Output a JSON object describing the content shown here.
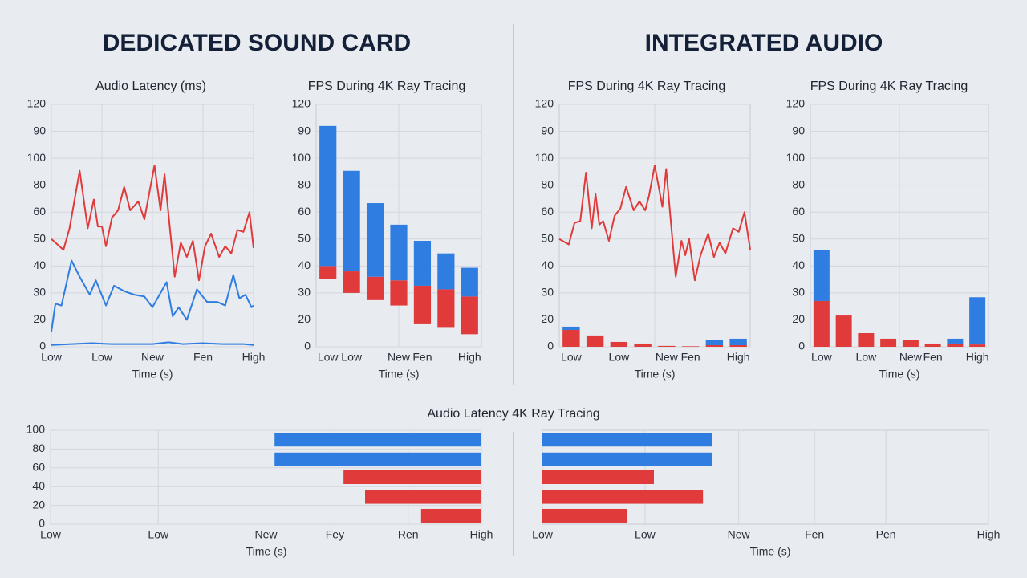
{
  "headings": [
    "DEDICATED SOUND CARD",
    "INTEGRATED AUDIO"
  ],
  "chart_data": [
    {
      "type": "line",
      "title": "Audio Latency (ms)",
      "x_label": "Time (s)",
      "xlim": [
        0,
        100
      ],
      "xticks": [
        {
          "value": 0,
          "label": "Low"
        },
        {
          "value": 25,
          "label": "Low"
        },
        {
          "value": 50,
          "label": "New"
        },
        {
          "value": 75,
          "label": "Fen"
        },
        {
          "value": 100,
          "label": "High"
        }
      ],
      "ylim": [
        0,
        135
      ],
      "yticks": [
        0,
        {
          "value": 15,
          "label": "20"
        },
        30,
        {
          "value": 45,
          "label": "40"
        },
        {
          "value": 60,
          "label": "50"
        },
        {
          "value": 75,
          "label": "60"
        },
        {
          "value": 90,
          "label": "80"
        },
        {
          "value": 105,
          "label": "100"
        },
        {
          "value": 120,
          "label": "90"
        },
        {
          "value": 135,
          "label": "120"
        }
      ],
      "series": [
        {
          "color": "#e03a3a",
          "x": [
            0,
            6,
            9,
            14,
            18,
            21,
            23,
            25,
            27,
            30,
            33,
            36,
            39,
            43,
            46,
            51,
            54,
            56,
            61,
            64,
            67,
            70,
            73,
            76,
            79,
            83,
            86,
            89,
            92,
            95,
            98,
            100
          ],
          "values": [
            60,
            54,
            66,
            98,
            66,
            82,
            67,
            67,
            56,
            72,
            76,
            89,
            76,
            81,
            71,
            101,
            76,
            96,
            39,
            58,
            50,
            59,
            37,
            56,
            63,
            50,
            56,
            52,
            65,
            64,
            75,
            55
          ]
        },
        {
          "color": "#2f7de1",
          "x": [
            0,
            2,
            5,
            10,
            14,
            19,
            22,
            27,
            31,
            36,
            41,
            46,
            50,
            57,
            60,
            63,
            67,
            72,
            77,
            82,
            86,
            90,
            93,
            96,
            99,
            100
          ],
          "values": [
            8.5,
            24,
            23,
            48,
            39,
            29,
            37,
            23,
            34,
            31,
            29,
            28,
            22,
            36,
            17,
            22,
            15,
            32,
            25,
            25,
            23,
            40,
            27,
            29,
            22,
            23
          ]
        },
        {
          "color": "#2f7de1",
          "x": [
            0,
            10,
            20,
            30,
            40,
            50,
            58,
            65,
            75,
            85,
            95,
            100
          ],
          "values": [
            1,
            1.5,
            2,
            1.5,
            1.5,
            1.5,
            2.5,
            1.5,
            2,
            1.5,
            1.5,
            1
          ]
        }
      ]
    },
    {
      "type": "bar",
      "title": "FPS During 4K Ray Tracing",
      "x_label": "Time (s)",
      "categories": [
        "Low",
        "Low",
        null,
        "New",
        "Fen",
        null,
        "High"
      ],
      "ylim": [
        0,
        135
      ],
      "yticks": [
        0,
        {
          "value": 15,
          "label": "20"
        },
        30,
        {
          "value": 45,
          "label": "40"
        },
        {
          "value": 60,
          "label": "50"
        },
        {
          "value": 75,
          "label": "60"
        },
        {
          "value": 90,
          "label": "80"
        },
        {
          "value": 105,
          "label": "100"
        },
        {
          "value": 120,
          "label": "90"
        },
        {
          "value": 135,
          "label": "120"
        }
      ],
      "base": [
        38,
        30,
        26,
        23,
        13,
        11,
        7
      ],
      "series": [
        {
          "color": "#e03a3a",
          "values": [
            7,
            12,
            13,
            14,
            21,
            21,
            21
          ]
        },
        {
          "color": "#2f7de1",
          "values": [
            78,
            56,
            41,
            31,
            25,
            20,
            16
          ]
        }
      ]
    },
    {
      "type": "combo",
      "title": "FPS During 4K Ray Tracing",
      "x_label": "Time (s)",
      "categories": [
        "Low",
        null,
        "Low",
        null,
        "New",
        "Fen",
        null,
        "High"
      ],
      "xlim": [
        0,
        100
      ],
      "ylim": [
        0,
        135
      ],
      "yticks": [
        0,
        {
          "value": 15,
          "label": "20"
        },
        30,
        {
          "value": 45,
          "label": "40"
        },
        {
          "value": 60,
          "label": "50"
        },
        {
          "value": 75,
          "label": "60"
        },
        {
          "value": 90,
          "label": "80"
        },
        {
          "value": 105,
          "label": "100"
        },
        {
          "value": 120,
          "label": "90"
        },
        {
          "value": 135,
          "label": "120"
        }
      ],
      "line": {
        "color": "#e03a3a",
        "x": [
          0,
          5,
          8,
          11,
          14,
          17,
          19,
          21,
          23,
          26,
          29,
          32,
          35,
          39,
          42,
          45,
          47,
          50,
          54,
          56,
          61,
          64,
          66,
          68,
          71,
          74,
          78,
          81,
          84,
          87,
          91,
          94,
          97,
          100
        ],
        "values": [
          60,
          57,
          69,
          70,
          97,
          66,
          85,
          68,
          70,
          59,
          73,
          77,
          89,
          76,
          81,
          76,
          84,
          101,
          78,
          99,
          39,
          59,
          51,
          60,
          37,
          51,
          63,
          50,
          58,
          52,
          66,
          64,
          75,
          54
        ]
      },
      "series": [
        {
          "color": "#e03a3a",
          "values": [
            9.4,
            6.3,
            2.7,
            1.8,
            0.5,
            0.3,
            0.9,
            0.9
          ]
        },
        {
          "color": "#2f7de1",
          "values": [
            1.8,
            0,
            0,
            0,
            0,
            0,
            2.7,
            3.6
          ]
        }
      ]
    },
    {
      "type": "bar",
      "title": "FPS During 4K Ray Tracing",
      "x_label": "Time (s)",
      "categories": [
        "Low",
        null,
        "Low",
        null,
        "New",
        "Fen",
        null,
        "High"
      ],
      "ylim": [
        0,
        135
      ],
      "yticks": [
        0,
        {
          "value": 15,
          "label": "20"
        },
        30,
        {
          "value": 45,
          "label": "40"
        },
        {
          "value": 60,
          "label": "50"
        },
        {
          "value": 75,
          "label": "60"
        },
        {
          "value": 90,
          "label": "80"
        },
        {
          "value": 105,
          "label": "100"
        },
        {
          "value": 120,
          "label": "90"
        },
        {
          "value": 135,
          "label": "120"
        }
      ],
      "series": [
        {
          "color": "#e03a3a",
          "values": [
            25.5,
            17.4,
            7.6,
            4.5,
            3.6,
            1.8,
            1.8,
            1.3
          ]
        },
        {
          "color": "#2f7de1",
          "values": [
            28.6,
            0,
            0,
            0,
            0,
            0,
            2.7,
            26.3
          ]
        }
      ]
    },
    {
      "type": "hbar",
      "title": "Audio Latency 4K Ray Tracing",
      "x_label": "Time (s)",
      "xlim": [
        0,
        100
      ],
      "xticks": [
        {
          "value": 0,
          "label": "Low"
        },
        {
          "value": 25,
          "label": "Low"
        },
        {
          "value": 50,
          "label": "New"
        },
        {
          "value": 66,
          "label": "Fey"
        },
        {
          "value": 83,
          "label": "Ren"
        },
        {
          "value": 100,
          "label": "High"
        }
      ],
      "ylim": [
        0,
        100
      ],
      "yticks": [
        0,
        20,
        40,
        60,
        80,
        100
      ],
      "bar_anchor": "right",
      "y": [
        90,
        69,
        50,
        29,
        9
      ],
      "values": [
        52,
        52,
        68,
        73,
        86
      ],
      "colors": [
        "#2f7de1",
        "#2f7de1",
        "#e03a3a",
        "#e03a3a",
        "#e03a3a"
      ]
    },
    {
      "type": "hbar",
      "x_label": "Time (s)",
      "xlim": [
        0,
        100
      ],
      "xticks": [
        {
          "value": 0,
          "label": "Low"
        },
        {
          "value": 23,
          "label": "Low"
        },
        {
          "value": 44,
          "label": "New"
        },
        {
          "value": 61,
          "label": "Fen"
        },
        {
          "value": 77,
          "label": "Pen"
        },
        {
          "value": 100,
          "label": "High"
        }
      ],
      "ylim": [
        0,
        100
      ],
      "bar_anchor": "left",
      "y": [
        90,
        69,
        50,
        29,
        9
      ],
      "values": [
        38,
        38,
        25,
        36,
        19
      ],
      "colors": [
        "#2f7de1",
        "#2f7de1",
        "#e03a3a",
        "#e03a3a",
        "#e03a3a"
      ]
    }
  ]
}
